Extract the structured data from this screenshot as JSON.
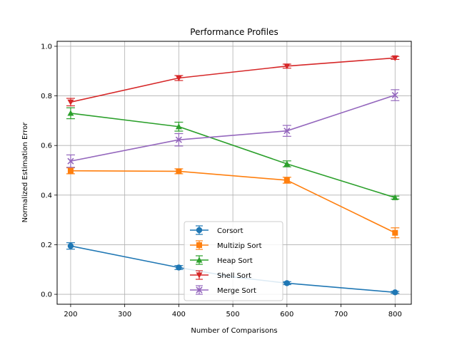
{
  "chart_data": {
    "type": "line",
    "title": "Performance Profiles",
    "xlabel": "Number of Comparisons",
    "ylabel": "Normalized Estimation Error",
    "x": [
      200,
      400,
      600,
      800
    ],
    "xlim": [
      175,
      830
    ],
    "ylim": [
      -0.04,
      1.02
    ],
    "xticks": [
      "200",
      "300",
      "400",
      "500",
      "600",
      "700",
      "800"
    ],
    "yticks": [
      "0.0",
      "0.2",
      "0.4",
      "0.6",
      "0.8",
      "1.0"
    ],
    "grid": true,
    "legend_position": "lower-center",
    "series": [
      {
        "name": "Corsort",
        "color": "#1f77b4",
        "marker": "circle",
        "values": [
          0.195,
          0.108,
          0.07,
          0.045,
          0.008
        ],
        "x": [
          200,
          400,
          500,
          600,
          800
        ],
        "errors": [
          0.013,
          0.008,
          0.0,
          0.006,
          0.004
        ]
      },
      {
        "name": "Multizip Sort",
        "color": "#ff7f0e",
        "marker": "square",
        "values": [
          0.498,
          0.496,
          0.46,
          0.248
        ],
        "x": [
          200,
          400,
          600,
          800
        ],
        "errors": [
          0.012,
          0.01,
          0.012,
          0.02
        ]
      },
      {
        "name": "Heap Sort",
        "color": "#2ca02c",
        "marker": "triangle-up",
        "values": [
          0.73,
          0.676,
          0.526,
          0.39
        ],
        "x": [
          200,
          400,
          600,
          800
        ],
        "errors": [
          0.022,
          0.018,
          0.012,
          0.006
        ]
      },
      {
        "name": "Shell Sort",
        "color": "#d62728",
        "marker": "triangle-down",
        "values": [
          0.775,
          0.872,
          0.92,
          0.953
        ],
        "x": [
          200,
          400,
          600,
          800
        ],
        "errors": [
          0.015,
          0.01,
          0.008,
          0.006
        ]
      },
      {
        "name": "Merge Sort",
        "color": "#9467bd",
        "marker": "x",
        "values": [
          0.537,
          0.623,
          0.659,
          0.803
        ],
        "x": [
          200,
          400,
          600,
          800
        ],
        "errors": [
          0.025,
          0.025,
          0.022,
          0.022
        ]
      }
    ]
  }
}
